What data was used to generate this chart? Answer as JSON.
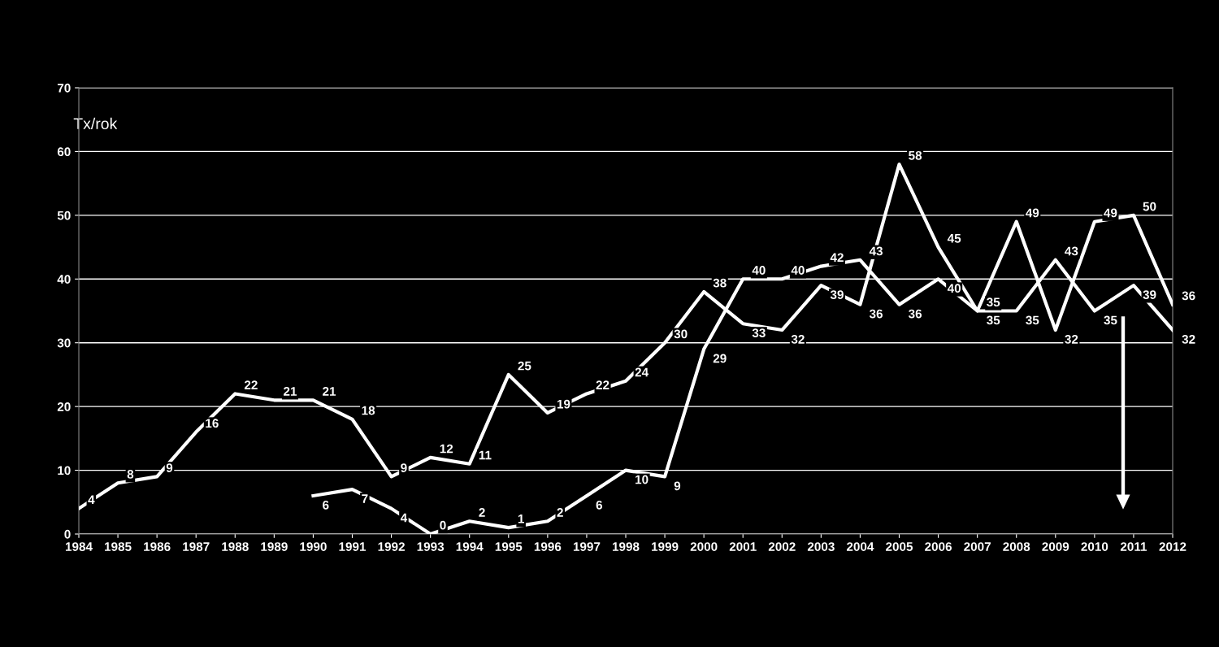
{
  "chart_data": {
    "type": "line",
    "ylabel": "Tx/rok",
    "categories": [
      "1984",
      "1985",
      "1986",
      "1987",
      "1988",
      "1989",
      "1990",
      "1991",
      "1992",
      "1993",
      "1994",
      "1995",
      "1996",
      "1997",
      "1998",
      "1999",
      "2000",
      "2001",
      "2002",
      "2003",
      "2004",
      "2005",
      "2006",
      "2007",
      "2008",
      "2009",
      "2010",
      "2011",
      "2012"
    ],
    "series": [
      {
        "color": "#ffffff",
        "values": [
          4,
          8,
          9,
          16,
          22,
          21,
          21,
          18,
          9,
          12,
          11,
          25,
          19,
          22,
          24,
          30,
          38,
          33,
          32,
          39,
          36,
          58,
          45,
          35,
          49,
          32,
          49,
          50,
          36
        ]
      },
      {
        "color": "#ffffff",
        "values": [
          null,
          null,
          null,
          null,
          null,
          null,
          6,
          7,
          4,
          0,
          2,
          1,
          2,
          6,
          10,
          9,
          29,
          40,
          40,
          42,
          43,
          36,
          40,
          35,
          35,
          43,
          35,
          39,
          32
        ]
      }
    ],
    "ylim": [
      0,
      70
    ],
    "yticks": [
      0,
      10,
      20,
      30,
      40,
      50,
      60,
      70
    ],
    "grid": "y",
    "data_labels": true,
    "marker": "none",
    "line_style": "solid",
    "legend": false
  }
}
